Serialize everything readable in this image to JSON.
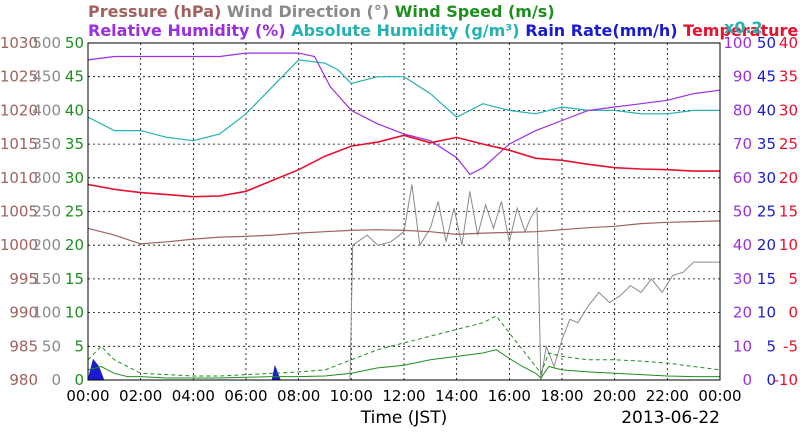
{
  "chart_data": {
    "type": "line",
    "date": "2013-06-22",
    "xlabel": "Time (JST)",
    "x_ticks": [
      "00:00",
      "02:00",
      "04:00",
      "06:00",
      "08:00",
      "10:00",
      "12:00",
      "14:00",
      "16:00",
      "18:00",
      "20:00",
      "22:00",
      "00:00"
    ],
    "legend": {
      "row1": [
        {
          "key": "pressure",
          "text": "Pressure (hPa)",
          "color": "#a0625c"
        },
        {
          "key": "wind_dir",
          "text": "Wind Direction (°)",
          "color": "#8a8a8a"
        },
        {
          "key": "wind_speed",
          "text": "Wind Speed (m/s)",
          "color": "#1e8f1e"
        }
      ],
      "row2": [
        {
          "key": "rh",
          "text": "Relative Humidity (%)",
          "color": "#9b2fe0"
        },
        {
          "key": "abs_hum",
          "text": "Absolute Humidity (g/m³)",
          "color": "#25b2b2"
        },
        {
          "key": "rain",
          "text": "Rain Rate(mm/h)",
          "color": "#1a1ad0"
        },
        {
          "key": "temp",
          "text": "Temperature (°C)",
          "color": "#e8102e"
        }
      ],
      "abs_scale": "x0.2"
    },
    "axes": {
      "pressure": {
        "color": "#a0625c",
        "ticks": [
          "1030",
          "1025",
          "1020",
          "1015",
          "1010",
          "1005",
          "1000",
          "995",
          "990",
          "985",
          "980"
        ],
        "range": [
          980,
          1030
        ]
      },
      "wind_dir": {
        "color": "#8a8a8a",
        "ticks": [
          "500",
          "450",
          "400",
          "350",
          "300",
          "250",
          "200",
          "150",
          "100",
          "50",
          "0"
        ],
        "range": [
          0,
          500
        ]
      },
      "wind_speed": {
        "color": "#1e8f1e",
        "ticks": [
          "50",
          "45",
          "40",
          "35",
          "30",
          "25",
          "20",
          "15",
          "10",
          "5",
          "0"
        ],
        "range": [
          0,
          50
        ]
      },
      "rh": {
        "color": "#9b2fe0",
        "ticks": [
          "100",
          "90",
          "80",
          "70",
          "60",
          "50",
          "40",
          "30",
          "20",
          "10",
          "0"
        ],
        "range": [
          0,
          100
        ]
      },
      "rain": {
        "color": "#1a1ad0",
        "ticks": [
          "50",
          "45",
          "40",
          "35",
          "30",
          "25",
          "20",
          "15",
          "10",
          "5",
          "0"
        ],
        "range": [
          0,
          50
        ]
      },
      "temp": {
        "color": "#e8102e",
        "ticks": [
          "40",
          "35",
          "30",
          "25",
          "20",
          "15",
          "10",
          "5",
          "0",
          "-5",
          "-10"
        ],
        "range": [
          -10,
          40
        ]
      }
    },
    "series": {
      "pressure": {
        "hours": [
          0,
          1,
          2,
          3,
          4,
          5,
          6,
          7,
          8,
          9,
          10,
          11,
          12,
          13,
          14,
          15,
          16,
          17,
          18,
          19,
          20,
          21,
          22,
          23,
          24
        ],
        "values": [
          1002.5,
          1001.5,
          1000.2,
          1000.5,
          1000.9,
          1001.2,
          1001.3,
          1001.5,
          1001.8,
          1002,
          1002.2,
          1002.3,
          1002.2,
          1002,
          1001.6,
          1001.8,
          1001.9,
          1002,
          1002.3,
          1002.6,
          1002.8,
          1003.2,
          1003.4,
          1003.5,
          1003.6
        ]
      },
      "rh": {
        "hours": [
          0,
          1,
          2,
          3,
          4,
          5,
          6,
          7,
          8,
          8.6,
          9.2,
          10,
          11,
          12,
          13,
          14,
          14.5,
          15,
          16,
          17,
          18,
          19,
          20,
          21,
          22,
          23,
          24
        ],
        "values": [
          95,
          96,
          96,
          96,
          96,
          96,
          97,
          97,
          97,
          96,
          87,
          80,
          76,
          73,
          71,
          66,
          61,
          63,
          70,
          74,
          77,
          80,
          81,
          82,
          83,
          85,
          86
        ]
      },
      "abs_hum": {
        "hours": [
          0,
          1,
          2,
          3,
          4,
          5,
          6,
          7,
          8,
          9,
          9.5,
          10,
          11,
          12,
          13,
          14,
          15,
          16,
          17,
          18,
          19,
          20,
          21,
          22,
          23,
          24
        ],
        "values": [
          78,
          74,
          74,
          72,
          71,
          73,
          79,
          87,
          95,
          94,
          92,
          88,
          90,
          90,
          85,
          78,
          82,
          80,
          79,
          81,
          80,
          80,
          79,
          79,
          80,
          80
        ]
      },
      "temp": {
        "hours": [
          0,
          1,
          2,
          3,
          4,
          5,
          6,
          7,
          8,
          9,
          10,
          11,
          12,
          13,
          14,
          15,
          16,
          17,
          18,
          19,
          20,
          21,
          22,
          23,
          24
        ],
        "values": [
          19,
          18.3,
          17.8,
          17.5,
          17.2,
          17.3,
          18,
          19.6,
          21.2,
          23.2,
          24.7,
          25.3,
          26.3,
          25.2,
          26,
          25,
          24.1,
          22.9,
          22.6,
          22,
          21.5,
          21.3,
          21.2,
          21,
          21
        ]
      },
      "wind_dir": {
        "hours": [
          6.2,
          9.95,
          10.05,
          10.6,
          11,
          11.5,
          12,
          12.3,
          12.6,
          13,
          13.3,
          13.6,
          13.9,
          14.2,
          14.5,
          14.8,
          15.1,
          15.4,
          15.7,
          16,
          16.3,
          16.6,
          16.8,
          17.05,
          17.2,
          17.4,
          17.7,
          18,
          18.3,
          18.6,
          19,
          19.4,
          19.8,
          20.2,
          20.6,
          21,
          21.4,
          21.8,
          22.2,
          22.6,
          23,
          24
        ],
        "values": [
          0,
          0,
          200,
          215,
          200,
          205,
          220,
          290,
          200,
          225,
          265,
          205,
          255,
          200,
          280,
          215,
          260,
          225,
          265,
          205,
          255,
          220,
          240,
          255,
          0,
          50,
          20,
          60,
          90,
          85,
          110,
          130,
          115,
          125,
          140,
          130,
          150,
          130,
          155,
          160,
          175,
          175
        ]
      },
      "wind_speed": {
        "hours": [
          0,
          0.5,
          1,
          1.5,
          2,
          3,
          4,
          5,
          6,
          7,
          8,
          9,
          10,
          11,
          12,
          13,
          14,
          15,
          15.5,
          16,
          16.5,
          17,
          17.2,
          17.5,
          18,
          19,
          20,
          21,
          22,
          23,
          24
        ],
        "values": [
          1.5,
          2,
          1,
          0.5,
          0.5,
          0.3,
          0.3,
          0.3,
          0.4,
          0.5,
          0.5,
          0.6,
          1,
          1.8,
          2.2,
          3,
          3.5,
          4,
          4.5,
          3.2,
          2,
          1,
          0.3,
          2,
          1.5,
          1.2,
          1,
          0.8,
          0.6,
          0.5,
          0.5
        ]
      },
      "wind_gust": {
        "hours": [
          0,
          0.5,
          1,
          1.5,
          2,
          3,
          4,
          5,
          6,
          7,
          8,
          9,
          10,
          11,
          12,
          13,
          14,
          15,
          15.5,
          16,
          16.5,
          17,
          17.2,
          17.5,
          18,
          19,
          20,
          21,
          22,
          23,
          24
        ],
        "values": [
          3,
          5,
          3,
          2,
          1,
          0.8,
          0.6,
          0.6,
          0.8,
          1,
          1.2,
          1.5,
          3,
          4.5,
          5.5,
          6.5,
          7.5,
          8.5,
          9.5,
          7,
          4.5,
          2,
          1,
          4,
          3.5,
          3,
          3,
          2.8,
          2.5,
          2,
          1.5
        ]
      },
      "rain": {
        "hours": [
          0,
          0.2,
          0.4,
          0.6,
          7,
          7.1,
          7.2,
          7.3
        ],
        "values": [
          0,
          3,
          2,
          0,
          0,
          2,
          1,
          0
        ]
      }
    }
  }
}
